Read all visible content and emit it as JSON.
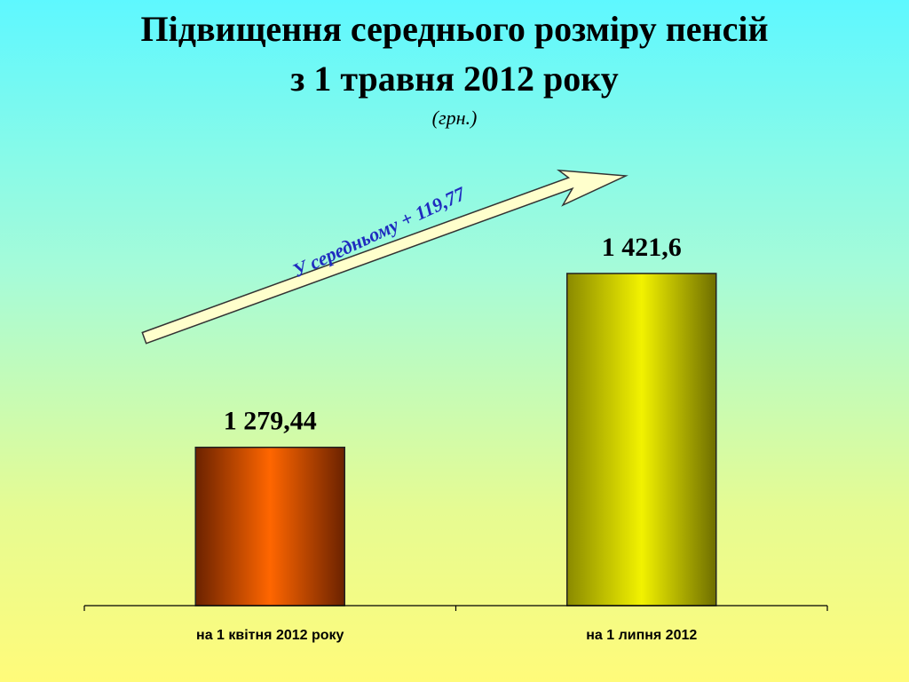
{
  "slide": {
    "title_line1": "Підвищення середнього розміру пенсій",
    "title_line2": "з 1 травня 2012 року",
    "unit": "(грн.)",
    "arrow_label": "У середньому + 119,77"
  },
  "colors": {
    "background_top": "#5ef8ff",
    "background_bottom": "#fffb7a",
    "bar1": "#ff6600",
    "bar2": "#e6e600",
    "arrow_fill": "#ffffcc",
    "arrow_label": "#1f2bbf"
  },
  "chart_data": {
    "type": "bar",
    "categories": [
      "на 1 квітня 2012 року",
      "на 1 липня 2012"
    ],
    "values": [
      1279.44,
      1421.6
    ],
    "data_labels": [
      "1 279,44",
      "1 421,6"
    ],
    "title": "Підвищення середнього розміру пенсій з 1 травня 2012 року",
    "ylabel": "",
    "xlabel": "",
    "ylim": [
      1150,
      1500
    ],
    "grid": false,
    "legend": "none"
  }
}
